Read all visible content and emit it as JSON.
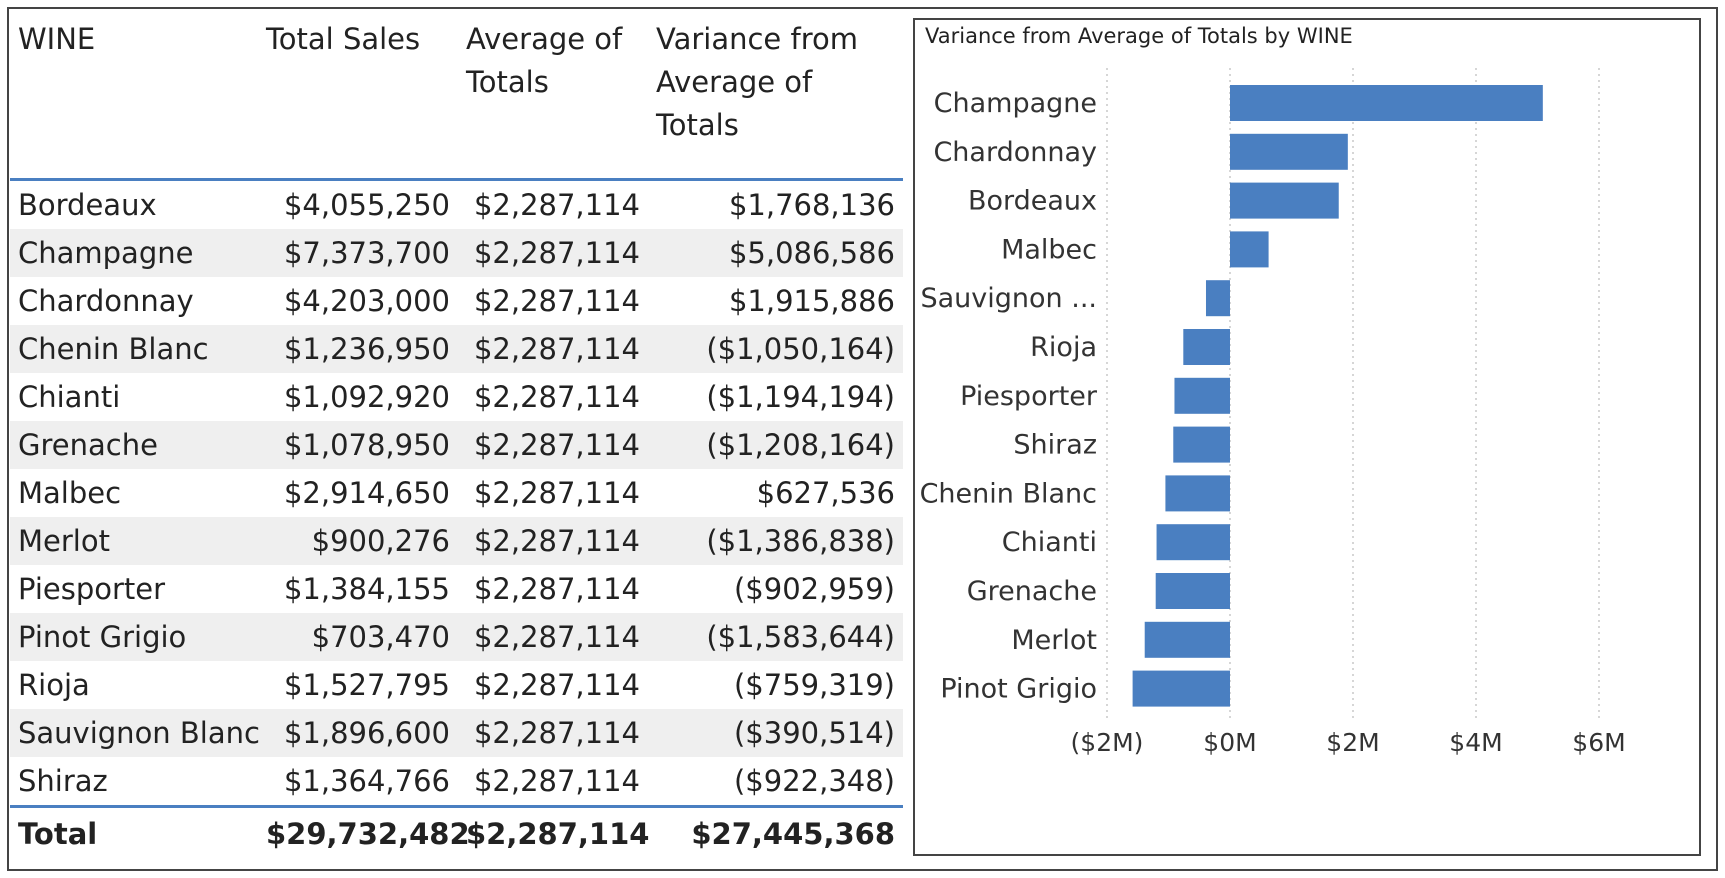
{
  "table": {
    "headers": [
      "WINE",
      "Total Sales",
      "Average of Totals",
      "Variance from Average of Totals"
    ],
    "rows": [
      [
        "Bordeaux",
        "$4,055,250",
        "$2,287,114",
        "$1,768,136"
      ],
      [
        "Champagne",
        "$7,373,700",
        "$2,287,114",
        "$5,086,586"
      ],
      [
        "Chardonnay",
        "$4,203,000",
        "$2,287,114",
        "$1,915,886"
      ],
      [
        "Chenin Blanc",
        "$1,236,950",
        "$2,287,114",
        "($1,050,164)"
      ],
      [
        "Chianti",
        "$1,092,920",
        "$2,287,114",
        "($1,194,194)"
      ],
      [
        "Grenache",
        "$1,078,950",
        "$2,287,114",
        "($1,208,164)"
      ],
      [
        "Malbec",
        "$2,914,650",
        "$2,287,114",
        "$627,536"
      ],
      [
        "Merlot",
        "$900,276",
        "$2,287,114",
        "($1,386,838)"
      ],
      [
        "Piesporter",
        "$1,384,155",
        "$2,287,114",
        "($902,959)"
      ],
      [
        "Pinot Grigio",
        "$703,470",
        "$2,287,114",
        "($1,583,644)"
      ],
      [
        "Rioja",
        "$1,527,795",
        "$2,287,114",
        "($759,319)"
      ],
      [
        "Sauvignon Blanc",
        "$1,896,600",
        "$2,287,114",
        "($390,514)"
      ],
      [
        "Shiraz",
        "$1,364,766",
        "$2,287,114",
        "($922,348)"
      ]
    ],
    "total": [
      "Total",
      "$29,732,482",
      "$2,287,114",
      "$27,445,368"
    ]
  },
  "chart_data": {
    "type": "bar",
    "orientation": "horizontal",
    "title": "Variance from Average of Totals by WINE",
    "categories": [
      "Champagne",
      "Chardonnay",
      "Bordeaux",
      "Malbec",
      "Sauvignon ...",
      "Rioja",
      "Piesporter",
      "Shiraz",
      "Chenin Blanc",
      "Chianti",
      "Grenache",
      "Merlot",
      "Pinot Grigio"
    ],
    "values": [
      5086586,
      1915886,
      1768136,
      627536,
      -390514,
      -759319,
      -902959,
      -922348,
      -1050164,
      -1194194,
      -1208164,
      -1386838,
      -1583644
    ],
    "xlim": [
      -2000000,
      6000000
    ],
    "xticks": [
      -2000000,
      0,
      2000000,
      4000000,
      6000000
    ],
    "xtick_labels": [
      "($2M)",
      "$0M",
      "$2M",
      "$4M",
      "$6M"
    ],
    "grid": "vertical dotted",
    "bar_color": "#4a7fc1"
  }
}
